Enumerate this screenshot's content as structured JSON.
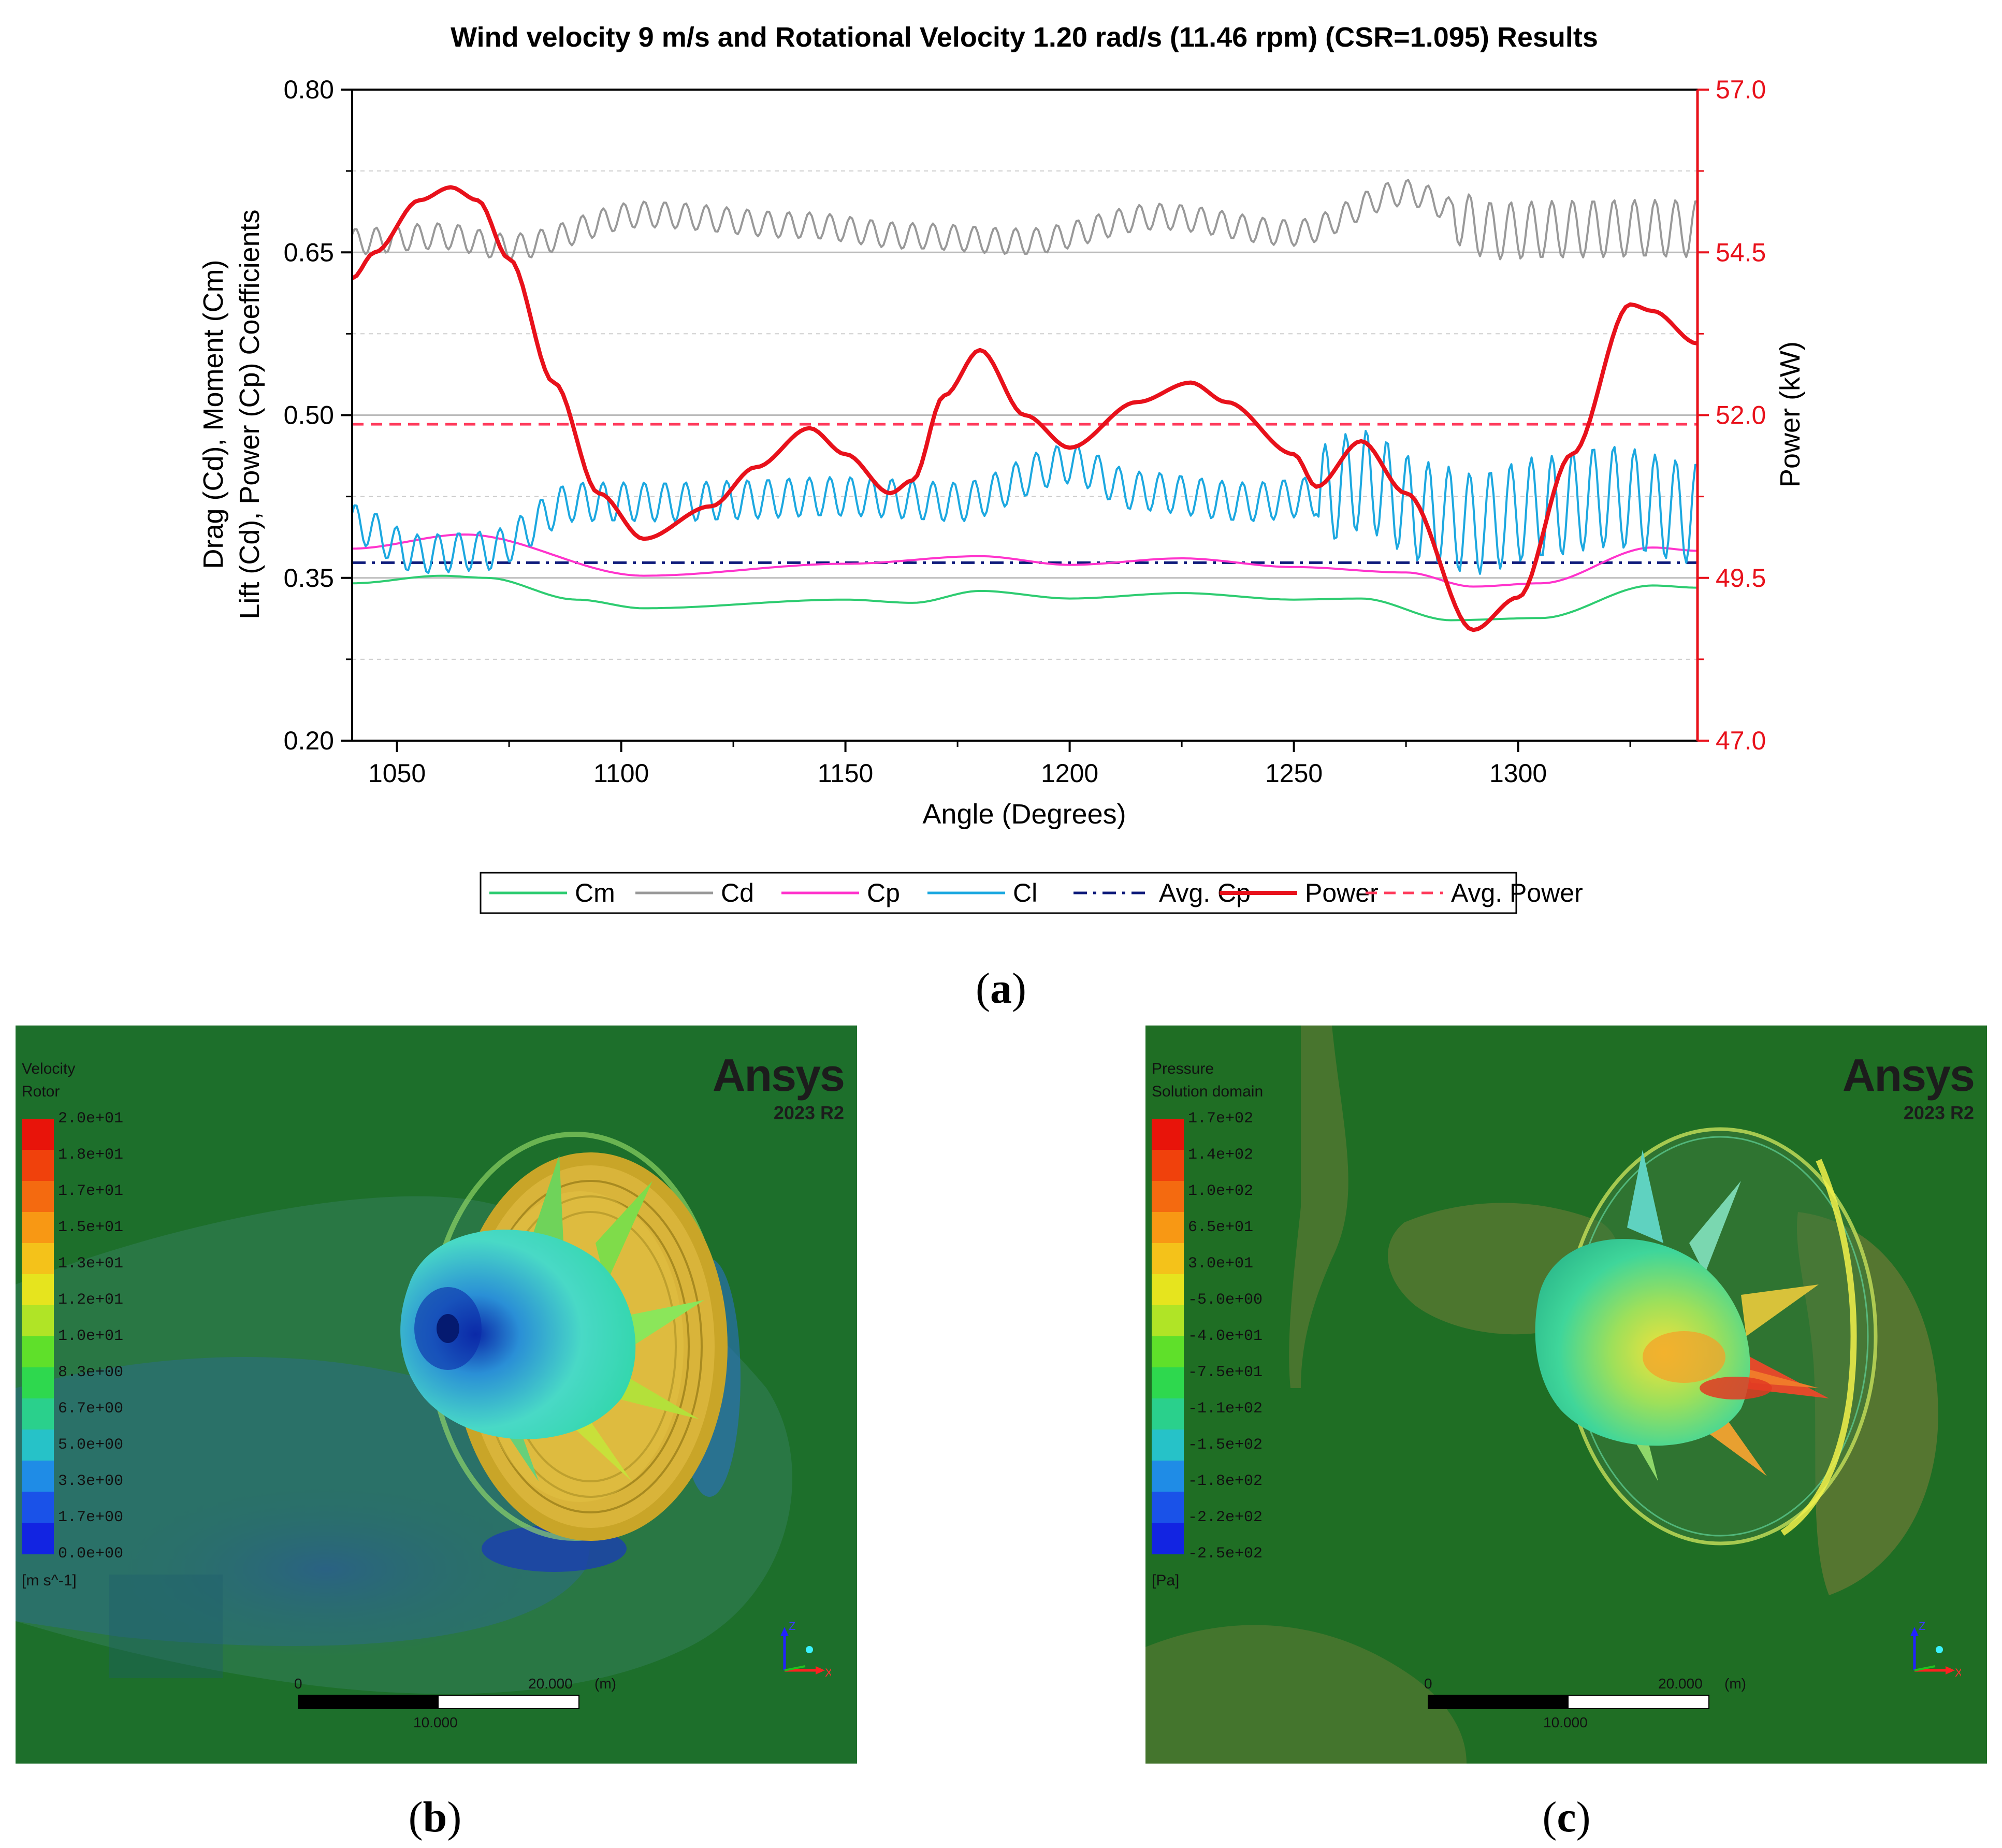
{
  "chart_data": {
    "type": "line",
    "title": "Wind velocity 9 m/s and  Rotational Velocity 1.20 rad/s (11.46 rpm) (CSR=1.095) Results",
    "xlabel": "Angle (Degrees)",
    "ylabel_left_line1": "Drag (Cd), Moment (Cm)",
    "ylabel_left_line2": "Lift (Cd), Power (Cp) Coefficients",
    "ylabel_right": "Power (kW)",
    "xlim": [
      1040,
      1340
    ],
    "ylim_left": [
      0.2,
      0.8
    ],
    "ylim_right": [
      47.0,
      57.0
    ],
    "x_ticks": [
      "1050",
      "1100",
      "1150",
      "1200",
      "1250",
      "1300"
    ],
    "y_left_ticks": [
      "0.20",
      "0.35",
      "0.50",
      "0.65",
      "0.80"
    ],
    "y_right_ticks": [
      "47.0",
      "49.5",
      "52.0",
      "54.5",
      "57.0"
    ],
    "grid": true,
    "legend_position": "bottom",
    "series": [
      {
        "name": "Cm",
        "axis": "left",
        "color": "#2ecc71",
        "style": "solid",
        "x": [
          1040,
          1060,
          1070,
          1090,
          1105,
          1150,
          1165,
          1180,
          1200,
          1225,
          1250,
          1265,
          1285,
          1305,
          1330,
          1340
        ],
        "y": [
          0.345,
          0.352,
          0.35,
          0.33,
          0.322,
          0.33,
          0.327,
          0.338,
          0.331,
          0.336,
          0.33,
          0.331,
          0.311,
          0.313,
          0.343,
          0.341
        ]
      },
      {
        "name": "Cd",
        "axis": "left",
        "color": "#999999",
        "style": "solid",
        "oscillation": 0.012,
        "x": [
          1040,
          1060,
          1075,
          1105,
          1140,
          1165,
          1190,
          1220,
          1250,
          1275,
          1295,
          1320,
          1340
        ],
        "y": [
          0.66,
          0.665,
          0.655,
          0.685,
          0.675,
          0.665,
          0.66,
          0.683,
          0.668,
          0.705,
          0.67,
          0.672,
          0.672
        ]
      },
      {
        "name": "Cp",
        "axis": "left",
        "color": "#ff33cc",
        "style": "solid",
        "x": [
          1040,
          1065,
          1105,
          1150,
          1180,
          1200,
          1225,
          1250,
          1275,
          1290,
          1305,
          1330,
          1340
        ],
        "y": [
          0.377,
          0.39,
          0.352,
          0.363,
          0.37,
          0.362,
          0.368,
          0.36,
          0.355,
          0.342,
          0.345,
          0.378,
          0.375
        ]
      },
      {
        "name": "Cl",
        "axis": "left",
        "color": "#1ca8e0",
        "style": "solid",
        "oscillation": 0.018,
        "x": [
          1040,
          1055,
          1070,
          1090,
          1110,
          1150,
          1175,
          1200,
          1215,
          1240,
          1255,
          1265,
          1280,
          1290,
          1305,
          1320,
          1340
        ],
        "y": [
          0.4,
          0.372,
          0.375,
          0.42,
          0.42,
          0.425,
          0.42,
          0.455,
          0.43,
          0.42,
          0.425,
          0.44,
          0.41,
          0.4,
          0.415,
          0.425,
          0.41
        ]
      },
      {
        "name": "Avg. Cp",
        "axis": "left",
        "color": "#0d1a7a",
        "style": "dashdot",
        "x": [
          1040,
          1340
        ],
        "y": [
          0.364,
          0.364
        ]
      },
      {
        "name": "Power",
        "axis": "right",
        "color": "#e8111b",
        "style": "solid",
        "x": [
          1040,
          1045,
          1055,
          1062,
          1068,
          1075,
          1085,
          1095,
          1105,
          1120,
          1130,
          1142,
          1150,
          1160,
          1165,
          1172,
          1180,
          1190,
          1200,
          1215,
          1227,
          1235,
          1250,
          1255,
          1265,
          1275,
          1290,
          1300,
          1312,
          1325,
          1330,
          1340
        ],
        "y": [
          54.1,
          54.5,
          55.3,
          55.5,
          55.3,
          54.4,
          52.5,
          50.8,
          50.1,
          50.6,
          51.2,
          51.8,
          51.4,
          50.8,
          51.0,
          52.3,
          53.0,
          52.0,
          51.5,
          52.2,
          52.5,
          52.2,
          51.4,
          50.9,
          51.6,
          50.8,
          48.7,
          49.2,
          51.4,
          53.7,
          53.6,
          53.1
        ]
      },
      {
        "name": "Avg. Power",
        "axis": "right",
        "color": "#ff3b5c",
        "style": "dashed",
        "x": [
          1040,
          1340
        ],
        "y": [
          51.86,
          51.86
        ]
      }
    ]
  },
  "captions": {
    "a": "a",
    "b": "b",
    "c": "c"
  },
  "panel_b": {
    "brand": "Ansys",
    "version": "2023 R2",
    "legend_title_1": "Velocity",
    "legend_title_2": "Rotor",
    "unit": "[m s^-1]",
    "levels": [
      "2.0e+01",
      "1.8e+01",
      "1.7e+01",
      "1.5e+01",
      "1.3e+01",
      "1.2e+01",
      "1.0e+01",
      "8.3e+00",
      "6.7e+00",
      "5.0e+00",
      "3.3e+00",
      "1.7e+00",
      "0.0e+00"
    ],
    "scale_start": "0",
    "scale_end": "20.000",
    "scale_unit": "(m)",
    "scale_mid": "10.000",
    "axis_z": "Z",
    "axis_x": "X"
  },
  "panel_c": {
    "brand": "Ansys",
    "version": "2023 R2",
    "legend_title_1": "Pressure",
    "legend_title_2": "Solution domain",
    "unit": "[Pa]",
    "levels": [
      "1.7e+02",
      "1.4e+02",
      "1.0e+02",
      "6.5e+01",
      "3.0e+01",
      "-5.0e+00",
      "-4.0e+01",
      "-7.5e+01",
      "-1.1e+02",
      "-1.5e+02",
      "-1.8e+02",
      "-2.2e+02",
      "-2.5e+02"
    ],
    "scale_start": "0",
    "scale_end": "20.000",
    "scale_unit": "(m)",
    "scale_mid": "10.000",
    "axis_z": "Z",
    "axis_x": "X"
  },
  "colors": {
    "left_axis": "#000000",
    "right_axis": "#e8111b",
    "grid": "#cccccc",
    "background_field": "#1e6e2a"
  }
}
